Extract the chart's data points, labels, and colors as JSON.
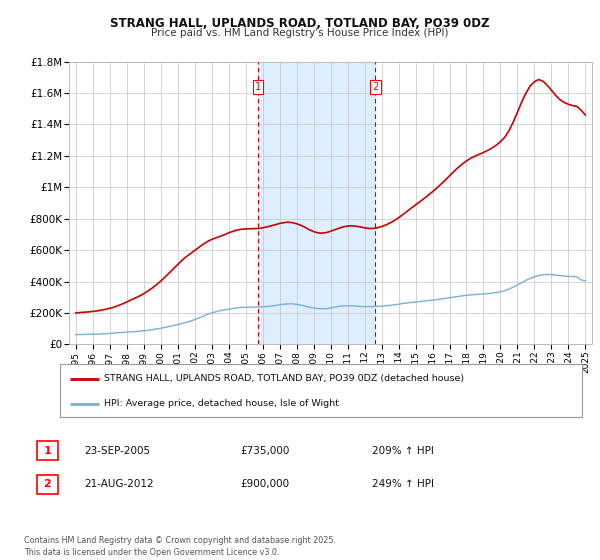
{
  "title": "STRANG HALL, UPLANDS ROAD, TOTLAND BAY, PO39 0DZ",
  "subtitle": "Price paid vs. HM Land Registry's House Price Index (HPI)",
  "ylim": [
    0,
    1800000
  ],
  "yticks": [
    0,
    200000,
    400000,
    600000,
    800000,
    1000000,
    1200000,
    1400000,
    1600000,
    1800000
  ],
  "ytick_labels": [
    "£0",
    "£200K",
    "£400K",
    "£600K",
    "£800K",
    "£1M",
    "£1.2M",
    "£1.4M",
    "£1.6M",
    "£1.8M"
  ],
  "background_color": "#ffffff",
  "plot_bg_color": "#ffffff",
  "grid_color": "#cccccc",
  "red_line_color": "#cc0000",
  "blue_line_color": "#7ab0d4",
  "shade_color": "#ddeeff",
  "vline_color": "#cc0000",
  "marker1_date": "23-SEP-2005",
  "marker1_price": "£735,000",
  "marker1_hpi": "209% ↑ HPI",
  "marker1_x": 2005.73,
  "marker2_date": "21-AUG-2012",
  "marker2_price": "£900,000",
  "marker2_hpi": "249% ↑ HPI",
  "marker2_x": 2012.64,
  "legend_label_red": "STRANG HALL, UPLANDS ROAD, TOTLAND BAY, PO39 0DZ (detached house)",
  "legend_label_blue": "HPI: Average price, detached house, Isle of Wight",
  "footer": "Contains HM Land Registry data © Crown copyright and database right 2025.\nThis data is licensed under the Open Government Licence v3.0.",
  "hpi_data": [
    [
      1995.0,
      62000
    ],
    [
      1995.25,
      63000
    ],
    [
      1995.5,
      63500
    ],
    [
      1995.75,
      64000
    ],
    [
      1996.0,
      65000
    ],
    [
      1996.25,
      65500
    ],
    [
      1996.5,
      67000
    ],
    [
      1996.75,
      68000
    ],
    [
      1997.0,
      70000
    ],
    [
      1997.25,
      72000
    ],
    [
      1997.5,
      74000
    ],
    [
      1997.75,
      76000
    ],
    [
      1998.0,
      78000
    ],
    [
      1998.25,
      80000
    ],
    [
      1998.5,
      82000
    ],
    [
      1998.75,
      84000
    ],
    [
      1999.0,
      87000
    ],
    [
      1999.25,
      90000
    ],
    [
      1999.5,
      94000
    ],
    [
      1999.75,
      98000
    ],
    [
      2000.0,
      103000
    ],
    [
      2000.25,
      108000
    ],
    [
      2000.5,
      114000
    ],
    [
      2000.75,
      120000
    ],
    [
      2001.0,
      126000
    ],
    [
      2001.25,
      133000
    ],
    [
      2001.5,
      140000
    ],
    [
      2001.75,
      148000
    ],
    [
      2002.0,
      158000
    ],
    [
      2002.25,
      168000
    ],
    [
      2002.5,
      180000
    ],
    [
      2002.75,
      192000
    ],
    [
      2003.0,
      200000
    ],
    [
      2003.25,
      208000
    ],
    [
      2003.5,
      215000
    ],
    [
      2003.75,
      220000
    ],
    [
      2004.0,
      224000
    ],
    [
      2004.25,
      228000
    ],
    [
      2004.5,
      232000
    ],
    [
      2004.75,
      235000
    ],
    [
      2005.0,
      236000
    ],
    [
      2005.25,
      237000
    ],
    [
      2005.5,
      238000
    ],
    [
      2005.75,
      238500
    ],
    [
      2006.0,
      239000
    ],
    [
      2006.25,
      241000
    ],
    [
      2006.5,
      244000
    ],
    [
      2006.75,
      248000
    ],
    [
      2007.0,
      252000
    ],
    [
      2007.25,
      256000
    ],
    [
      2007.5,
      258000
    ],
    [
      2007.75,
      258000
    ],
    [
      2008.0,
      255000
    ],
    [
      2008.25,
      250000
    ],
    [
      2008.5,
      244000
    ],
    [
      2008.75,
      237000
    ],
    [
      2009.0,
      232000
    ],
    [
      2009.25,
      228000
    ],
    [
      2009.5,
      226000
    ],
    [
      2009.75,
      228000
    ],
    [
      2010.0,
      232000
    ],
    [
      2010.25,
      237000
    ],
    [
      2010.5,
      242000
    ],
    [
      2010.75,
      245000
    ],
    [
      2011.0,
      246000
    ],
    [
      2011.25,
      245000
    ],
    [
      2011.5,
      244000
    ],
    [
      2011.75,
      242000
    ],
    [
      2012.0,
      240000
    ],
    [
      2012.25,
      240000
    ],
    [
      2012.5,
      241000
    ],
    [
      2012.75,
      242000
    ],
    [
      2013.0,
      244000
    ],
    [
      2013.25,
      246000
    ],
    [
      2013.5,
      249000
    ],
    [
      2013.75,
      252000
    ],
    [
      2014.0,
      256000
    ],
    [
      2014.25,
      260000
    ],
    [
      2014.5,
      264000
    ],
    [
      2014.75,
      267000
    ],
    [
      2015.0,
      270000
    ],
    [
      2015.25,
      273000
    ],
    [
      2015.5,
      276000
    ],
    [
      2015.75,
      279000
    ],
    [
      2016.0,
      282000
    ],
    [
      2016.25,
      285000
    ],
    [
      2016.5,
      289000
    ],
    [
      2016.75,
      293000
    ],
    [
      2017.0,
      297000
    ],
    [
      2017.25,
      301000
    ],
    [
      2017.5,
      305000
    ],
    [
      2017.75,
      309000
    ],
    [
      2018.0,
      312000
    ],
    [
      2018.25,
      315000
    ],
    [
      2018.5,
      317000
    ],
    [
      2018.75,
      319000
    ],
    [
      2019.0,
      321000
    ],
    [
      2019.25,
      323000
    ],
    [
      2019.5,
      326000
    ],
    [
      2019.75,
      330000
    ],
    [
      2020.0,
      335000
    ],
    [
      2020.25,
      342000
    ],
    [
      2020.5,
      352000
    ],
    [
      2020.75,
      365000
    ],
    [
      2021.0,
      378000
    ],
    [
      2021.25,
      393000
    ],
    [
      2021.5,
      408000
    ],
    [
      2021.75,
      420000
    ],
    [
      2022.0,
      430000
    ],
    [
      2022.25,
      438000
    ],
    [
      2022.5,
      443000
    ],
    [
      2022.75,
      445000
    ],
    [
      2023.0,
      444000
    ],
    [
      2023.25,
      441000
    ],
    [
      2023.5,
      438000
    ],
    [
      2023.75,
      435000
    ],
    [
      2024.0,
      433000
    ],
    [
      2024.25,
      432000
    ],
    [
      2024.5,
      430000
    ],
    [
      2024.75,
      410000
    ],
    [
      2025.0,
      405000
    ]
  ],
  "property_data": [
    [
      1995.0,
      200000
    ],
    [
      1995.25,
      203000
    ],
    [
      1995.5,
      205000
    ],
    [
      1995.75,
      207000
    ],
    [
      1996.0,
      210000
    ],
    [
      1996.25,
      213000
    ],
    [
      1996.5,
      218000
    ],
    [
      1996.75,
      223000
    ],
    [
      1997.0,
      230000
    ],
    [
      1997.25,
      237000
    ],
    [
      1997.5,
      247000
    ],
    [
      1997.75,
      258000
    ],
    [
      1998.0,
      270000
    ],
    [
      1998.25,
      283000
    ],
    [
      1998.5,
      295000
    ],
    [
      1998.75,
      308000
    ],
    [
      1999.0,
      323000
    ],
    [
      1999.25,
      340000
    ],
    [
      1999.5,
      359000
    ],
    [
      1999.75,
      380000
    ],
    [
      2000.0,
      403000
    ],
    [
      2000.25,
      428000
    ],
    [
      2000.5,
      455000
    ],
    [
      2000.75,
      482000
    ],
    [
      2001.0,
      508000
    ],
    [
      2001.25,
      535000
    ],
    [
      2001.5,
      558000
    ],
    [
      2001.75,
      578000
    ],
    [
      2002.0,
      598000
    ],
    [
      2002.25,
      618000
    ],
    [
      2002.5,
      638000
    ],
    [
      2002.75,
      655000
    ],
    [
      2003.0,
      668000
    ],
    [
      2003.25,
      678000
    ],
    [
      2003.5,
      688000
    ],
    [
      2003.75,
      698000
    ],
    [
      2004.0,
      710000
    ],
    [
      2004.25,
      720000
    ],
    [
      2004.5,
      728000
    ],
    [
      2004.75,
      733000
    ],
    [
      2005.0,
      735000
    ],
    [
      2005.25,
      736000
    ],
    [
      2005.5,
      737000
    ],
    [
      2005.75,
      738000
    ],
    [
      2006.0,
      742000
    ],
    [
      2006.25,
      748000
    ],
    [
      2006.5,
      755000
    ],
    [
      2006.75,
      762000
    ],
    [
      2007.0,
      770000
    ],
    [
      2007.25,
      775000
    ],
    [
      2007.5,
      778000
    ],
    [
      2007.75,
      775000
    ],
    [
      2008.0,
      768000
    ],
    [
      2008.25,
      758000
    ],
    [
      2008.5,
      745000
    ],
    [
      2008.75,
      730000
    ],
    [
      2009.0,
      718000
    ],
    [
      2009.25,
      710000
    ],
    [
      2009.5,
      708000
    ],
    [
      2009.75,
      712000
    ],
    [
      2010.0,
      720000
    ],
    [
      2010.25,
      730000
    ],
    [
      2010.5,
      740000
    ],
    [
      2010.75,
      748000
    ],
    [
      2011.0,
      753000
    ],
    [
      2011.25,
      755000
    ],
    [
      2011.5,
      752000
    ],
    [
      2011.75,
      748000
    ],
    [
      2012.0,
      742000
    ],
    [
      2012.25,
      738000
    ],
    [
      2012.5,
      738000
    ],
    [
      2012.75,
      742000
    ],
    [
      2013.0,
      750000
    ],
    [
      2013.25,
      760000
    ],
    [
      2013.5,
      773000
    ],
    [
      2013.75,
      788000
    ],
    [
      2014.0,
      806000
    ],
    [
      2014.25,
      826000
    ],
    [
      2014.5,
      847000
    ],
    [
      2014.75,
      868000
    ],
    [
      2015.0,
      888000
    ],
    [
      2015.25,
      908000
    ],
    [
      2015.5,
      928000
    ],
    [
      2015.75,
      950000
    ],
    [
      2016.0,
      972000
    ],
    [
      2016.25,
      995000
    ],
    [
      2016.5,
      1020000
    ],
    [
      2016.75,
      1046000
    ],
    [
      2017.0,
      1073000
    ],
    [
      2017.25,
      1100000
    ],
    [
      2017.5,
      1125000
    ],
    [
      2017.75,
      1148000
    ],
    [
      2018.0,
      1168000
    ],
    [
      2018.25,
      1185000
    ],
    [
      2018.5,
      1198000
    ],
    [
      2018.75,
      1210000
    ],
    [
      2019.0,
      1222000
    ],
    [
      2019.25,
      1235000
    ],
    [
      2019.5,
      1250000
    ],
    [
      2019.75,
      1268000
    ],
    [
      2020.0,
      1290000
    ],
    [
      2020.25,
      1318000
    ],
    [
      2020.5,
      1360000
    ],
    [
      2020.75,
      1415000
    ],
    [
      2021.0,
      1478000
    ],
    [
      2021.25,
      1543000
    ],
    [
      2021.5,
      1600000
    ],
    [
      2021.75,
      1645000
    ],
    [
      2022.0,
      1672000
    ],
    [
      2022.25,
      1686000
    ],
    [
      2022.5,
      1675000
    ],
    [
      2022.75,
      1650000
    ],
    [
      2023.0,
      1618000
    ],
    [
      2023.25,
      1585000
    ],
    [
      2023.5,
      1558000
    ],
    [
      2023.75,
      1540000
    ],
    [
      2024.0,
      1528000
    ],
    [
      2024.25,
      1520000
    ],
    [
      2024.5,
      1515000
    ],
    [
      2024.75,
      1490000
    ],
    [
      2025.0,
      1460000
    ]
  ]
}
